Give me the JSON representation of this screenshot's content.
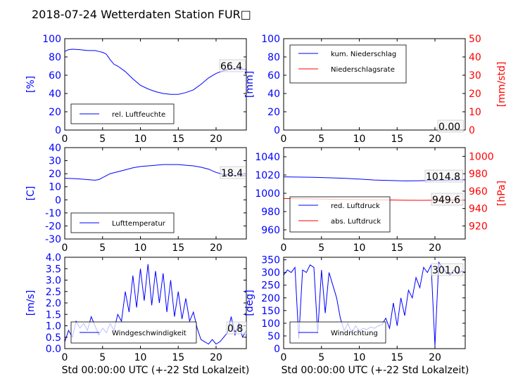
{
  "title": "2018-07-24 Wetterdaten Station FUR□",
  "x_axis_label": "Std 00:00:00 UTC (+-22 Std Lokalzeit)",
  "colors": {
    "primary": "#0000ff",
    "secondary": "#ff0000",
    "frame": "#000000"
  },
  "chart_data": [
    {
      "id": "humidity",
      "type": "line",
      "ylabel": "[%]",
      "xlim": [
        0,
        24
      ],
      "ylim": [
        0,
        100
      ],
      "xticks": [
        0,
        5,
        10,
        15,
        20
      ],
      "yticks": [
        0,
        20,
        40,
        60,
        80,
        100
      ],
      "legend": {
        "placement": "lower-left",
        "entries": [
          "rel. Luftfeuchte"
        ]
      },
      "last_value_label": "66.4",
      "series": [
        {
          "name": "rel. Luftfeuchte",
          "color": "#0000ff",
          "x": [
            0,
            0.5,
            1,
            2,
            3,
            4,
            4.5,
            5,
            5.5,
            6,
            6.5,
            7,
            8,
            9,
            10,
            11,
            12,
            13,
            14,
            15,
            16,
            17,
            18,
            19,
            20,
            21,
            22,
            23,
            24
          ],
          "y": [
            86,
            88,
            88.5,
            88,
            87,
            87,
            86,
            85,
            83,
            77,
            72,
            70,
            64,
            56,
            49,
            45,
            42,
            40,
            39,
            39,
            41,
            44,
            50,
            57,
            62,
            65,
            67,
            67,
            66.4
          ]
        }
      ]
    },
    {
      "id": "precipitation",
      "type": "line",
      "ylabel": "[mm]",
      "ylabel_right": "[mm/std]",
      "xlim": [
        0,
        24
      ],
      "ylim": [
        0,
        100
      ],
      "ylim_right": [
        0,
        50
      ],
      "xticks": [
        0,
        5,
        10,
        15,
        20
      ],
      "yticks": [
        0,
        20,
        40,
        60,
        80,
        100
      ],
      "yticks_right": [
        0,
        10,
        20,
        30,
        40,
        50
      ],
      "legend": {
        "placement": "upper-left",
        "entries": [
          "kum. Niederschlag",
          "Niederschlagsrate"
        ]
      },
      "last_value_label": "0.00",
      "series": [
        {
          "name": "kum. Niederschlag",
          "color": "#0000ff",
          "axis": "left",
          "x": [
            0,
            24
          ],
          "y": [
            0,
            0
          ]
        },
        {
          "name": "Niederschlagsrate",
          "color": "#ff0000",
          "axis": "right",
          "x": [
            0,
            24
          ],
          "y": [
            0,
            0
          ]
        }
      ]
    },
    {
      "id": "temperature",
      "type": "line",
      "ylabel": "[C]",
      "xlim": [
        0,
        24
      ],
      "ylim": [
        -30,
        40
      ],
      "xticks": [
        0,
        5,
        10,
        15,
        20
      ],
      "yticks": [
        -30,
        -20,
        -10,
        0,
        10,
        20,
        30,
        40
      ],
      "legend": {
        "placement": "lower-left",
        "entries": [
          "Lufttemperatur"
        ]
      },
      "last_value_label": "18.4",
      "series": [
        {
          "name": "Lufttemperatur",
          "color": "#0000ff",
          "x": [
            0,
            1,
            2,
            3,
            4,
            4.5,
            5,
            6,
            7,
            8,
            9,
            10,
            11,
            12,
            13,
            14,
            15,
            16,
            17,
            18,
            19,
            20,
            21,
            22,
            23,
            24
          ],
          "y": [
            16.5,
            16.3,
            16,
            15.5,
            15,
            15.5,
            17,
            20,
            21.5,
            23,
            24.5,
            25.5,
            26,
            26.5,
            27,
            27,
            27,
            26.5,
            26,
            25,
            23.5,
            21,
            19.5,
            18.8,
            18.5,
            18.4
          ]
        }
      ]
    },
    {
      "id": "pressure",
      "type": "line",
      "ylabel_right": "[hPa]",
      "xlim": [
        0,
        24
      ],
      "ylim": [
        950,
        1050
      ],
      "ylim_right": [
        905,
        1010
      ],
      "xticks": [
        0,
        5,
        10,
        15,
        20
      ],
      "yticks": [
        960,
        980,
        1000,
        1020,
        1040
      ],
      "yticks_right": [
        920,
        940,
        960,
        980,
        1000
      ],
      "legend": {
        "placement": "lower-left",
        "entries": [
          "red. Luftdruck",
          "abs. Luftdruck"
        ]
      },
      "last_value_labels": [
        "1014.8",
        "949.6"
      ],
      "series": [
        {
          "name": "red. Luftdruck",
          "color": "#0000ff",
          "axis": "left",
          "x": [
            0,
            4,
            8,
            10,
            12,
            14,
            16,
            18,
            20,
            22,
            24
          ],
          "y": [
            1018,
            1017.5,
            1016.5,
            1015.5,
            1014.5,
            1014,
            1013.5,
            1013.8,
            1014.2,
            1014.6,
            1014.8
          ]
        },
        {
          "name": "abs. Luftdruck",
          "color": "#ff0000",
          "axis": "right",
          "x": [
            0,
            4,
            8,
            10,
            12,
            14,
            16,
            18,
            20,
            22,
            24
          ],
          "y": [
            951.5,
            951,
            950.5,
            950.2,
            950,
            949.8,
            949.5,
            949.4,
            949.5,
            949.6,
            949.6
          ]
        }
      ]
    },
    {
      "id": "wind_speed",
      "type": "line",
      "ylabel": "[m/s]",
      "xlim": [
        0,
        24
      ],
      "ylim": [
        0,
        4
      ],
      "xticks": [
        0,
        5,
        10,
        15,
        20
      ],
      "yticks": [
        0.0,
        0.5,
        1.0,
        1.5,
        2.0,
        2.5,
        3.0,
        3.5,
        4.0
      ],
      "legend": {
        "placement": "lower-left",
        "entries": [
          "Windgeschwindigkeit"
        ]
      },
      "last_value_label": "0.8",
      "series": [
        {
          "name": "Windgeschwindigkeit",
          "color": "#0000ff",
          "x": [
            0,
            0.5,
            1,
            1.5,
            2,
            2.5,
            3,
            3.5,
            4,
            4.5,
            5,
            5.5,
            6,
            6.5,
            7,
            7.5,
            8,
            8.5,
            9,
            9.5,
            10,
            10.5,
            11,
            11.5,
            12,
            12.5,
            13,
            13.5,
            14,
            14.5,
            15,
            15.5,
            16,
            16.5,
            17,
            17.5,
            18,
            18.5,
            19,
            19.5,
            20,
            20.5,
            21,
            21.5,
            22,
            22.5,
            23,
            23.5,
            24
          ],
          "y": [
            0.3,
            0.8,
            0.5,
            1.2,
            0.9,
            1.1,
            0.8,
            1.4,
            1.0,
            0.6,
            0.9,
            0.7,
            1.1,
            0.8,
            1.5,
            1.2,
            2.5,
            1.6,
            3.2,
            1.8,
            3.5,
            2.1,
            3.7,
            1.9,
            3.4,
            2.0,
            3.3,
            1.6,
            3.0,
            1.4,
            2.5,
            1.3,
            2.2,
            1.2,
            1.6,
            0.9,
            0.4,
            0.3,
            0.2,
            0.4,
            0.2,
            0.3,
            0.5,
            0.7,
            1.4,
            0.6,
            1.1,
            0.5,
            0.8
          ]
        }
      ]
    },
    {
      "id": "wind_direction",
      "type": "line",
      "ylabel": "[deg]",
      "xlim": [
        0,
        24
      ],
      "ylim": [
        0,
        360
      ],
      "xticks": [
        0,
        5,
        10,
        15,
        20
      ],
      "yticks": [
        0,
        50,
        100,
        150,
        200,
        250,
        300,
        350
      ],
      "legend": {
        "placement": "lower-left",
        "entries": [
          "Windrichtung"
        ]
      },
      "last_value_label": "301.0",
      "series": [
        {
          "name": "Windrichtung",
          "color": "#0000ff",
          "x": [
            0,
            0.5,
            1,
            1.5,
            2,
            2.5,
            3,
            3.5,
            4,
            4.5,
            5,
            5.5,
            6,
            6.5,
            7,
            7.5,
            8,
            8.5,
            9,
            9.5,
            10,
            10.5,
            11,
            11.5,
            12,
            12.5,
            13,
            13.5,
            14,
            14.5,
            15,
            15.5,
            16,
            16.5,
            17,
            17.5,
            18,
            18.5,
            19,
            19.5,
            20,
            20.5,
            21,
            21.5,
            22,
            22.5,
            23,
            23.5,
            24
          ],
          "y": [
            290,
            310,
            300,
            320,
            40,
            310,
            300,
            330,
            320,
            60,
            310,
            140,
            300,
            250,
            200,
            120,
            70,
            100,
            60,
            90,
            70,
            80,
            75,
            85,
            80,
            90,
            95,
            120,
            80,
            180,
            90,
            200,
            130,
            230,
            200,
            280,
            240,
            320,
            300,
            330,
            10,
            340,
            320,
            300,
            290,
            310,
            295,
            305,
            301
          ]
        }
      ]
    }
  ]
}
